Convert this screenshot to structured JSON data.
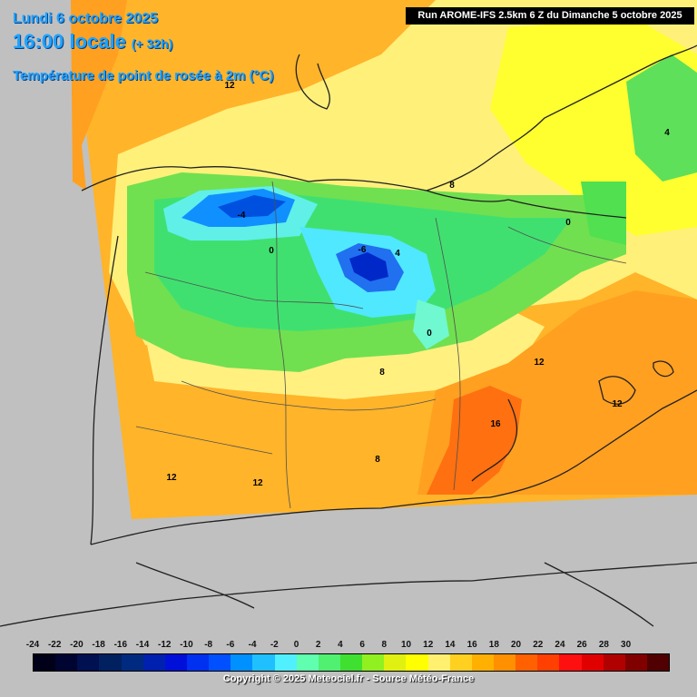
{
  "header": {
    "date": "Lundi 6 octobre 2025",
    "time": "16:00 locale",
    "lead": "(+ 32h)",
    "parameter": "Température de point de rosée à 2m (°C)"
  },
  "run_info": "Run AROME-IFS 2.5km 6 Z du Dimanche 5 octobre 2025",
  "legend": {
    "ticks": [
      "-24",
      "-22",
      "-20",
      "-18",
      "-16",
      "-14",
      "-12",
      "-10",
      "-8",
      "-6",
      "-4",
      "-2",
      "0",
      "2",
      "4",
      "6",
      "8",
      "10",
      "12",
      "14",
      "16",
      "18",
      "20",
      "22",
      "24",
      "26",
      "28",
      "30"
    ],
    "colors": [
      "#000018",
      "#000430",
      "#001050",
      "#002060",
      "#002a80",
      "#0020b0",
      "#0010d8",
      "#0030f0",
      "#0050ff",
      "#0090ff",
      "#20c0ff",
      "#50f0ff",
      "#60ffb0",
      "#50f070",
      "#40e030",
      "#90f020",
      "#e0f010",
      "#ffff00",
      "#fff070",
      "#ffd020",
      "#ffb000",
      "#ff9000",
      "#ff6000",
      "#ff4000",
      "#ff1010",
      "#e00000",
      "#b00000",
      "#800000",
      "#500000"
    ]
  },
  "contour_labels": [
    "12",
    "8",
    "-4",
    "0",
    "-6",
    "4",
    "0",
    "8",
    "12",
    "12",
    "16",
    "8",
    "12",
    "12",
    "0",
    "4"
  ],
  "copyright": "Copyright © 2025 Meteociel.fr - Source Météo-France"
}
